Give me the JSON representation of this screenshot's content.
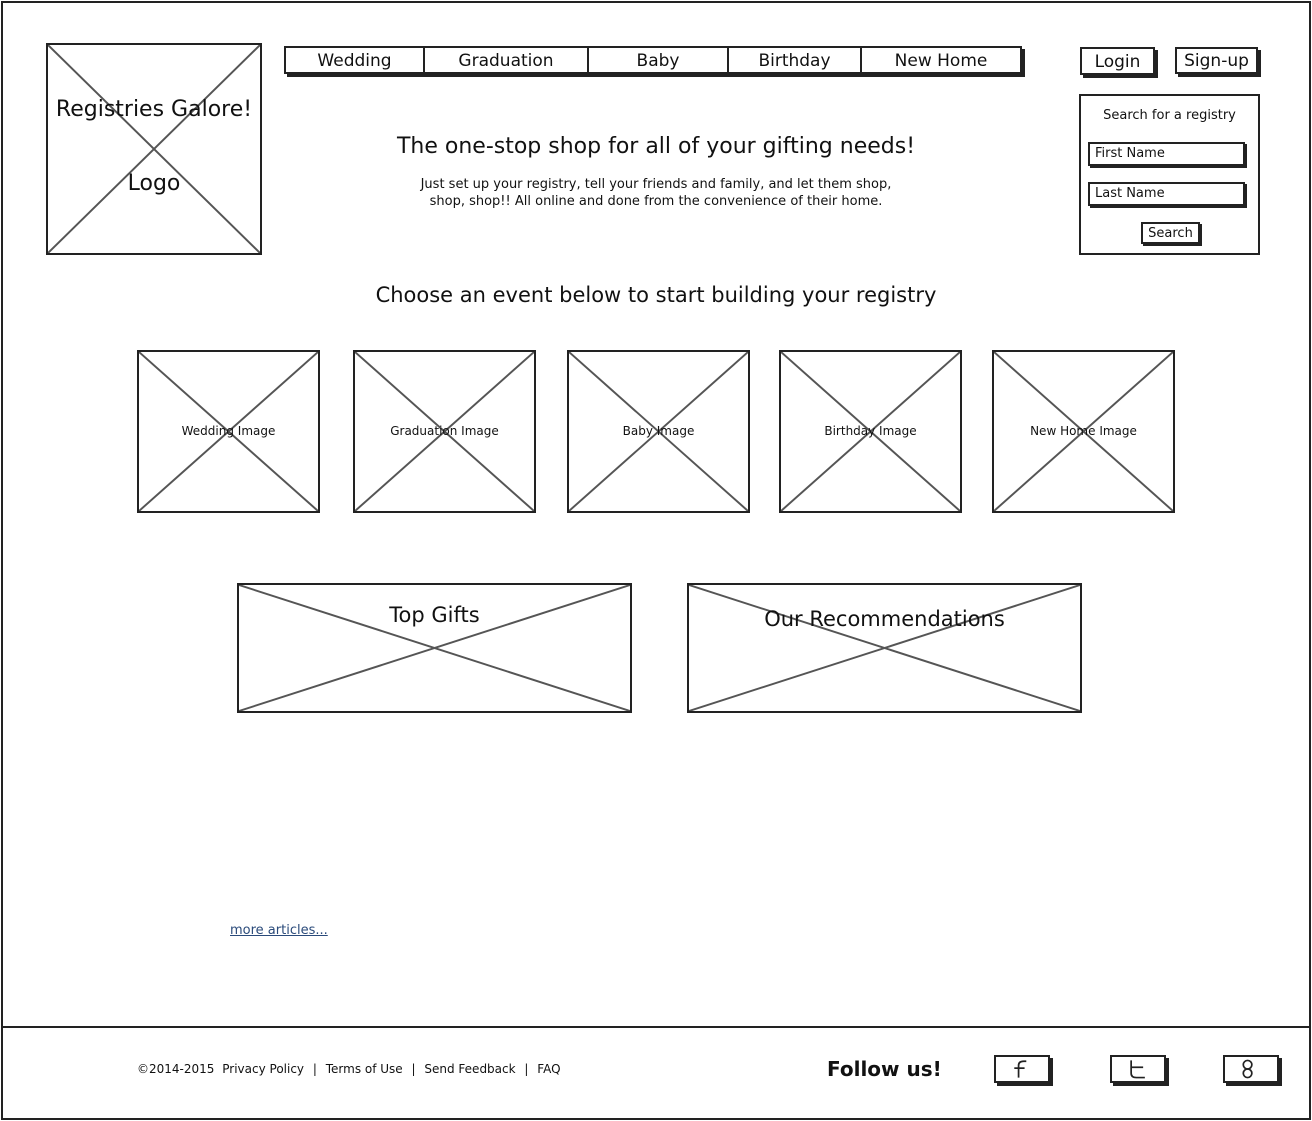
{
  "logo": {
    "line1": "Registries Galore!",
    "line2": "Logo"
  },
  "nav": {
    "tabs": [
      "Wedding",
      "Graduation",
      "Baby",
      "Birthday",
      "New Home"
    ]
  },
  "auth": {
    "login_label": "Login",
    "signup_label": "Sign-up"
  },
  "search": {
    "title": "Search for a registry",
    "first_name_value": "First Name",
    "last_name_value": "Last Name",
    "button_label": "Search"
  },
  "hero": {
    "headline": "The one-stop shop for all of your gifting needs!",
    "sub_line1": "Just set up your registry, tell your friends and family, and let them shop,",
    "sub_line2": "shop, shop!! All online and done from the convenience of their home."
  },
  "events": {
    "prompt": "Choose an event below to start building your registry",
    "images": [
      "Wedding Image",
      "Graduation Image",
      "Baby Image",
      "Birthday Image",
      "New Home Image"
    ]
  },
  "promos": {
    "top_gifts": "Top Gifts",
    "recommendations": "Our Recommendations"
  },
  "more_articles": "more articles...",
  "footer": {
    "copyright": "©2014-2015",
    "links": [
      "Privacy Policy",
      "Terms of Use",
      "Send Feedback",
      "FAQ"
    ],
    "separator": "|",
    "follow": "Follow us!",
    "social_icons": [
      "facebook-icon",
      "twitter-icon",
      "google-plus-icon"
    ]
  }
}
